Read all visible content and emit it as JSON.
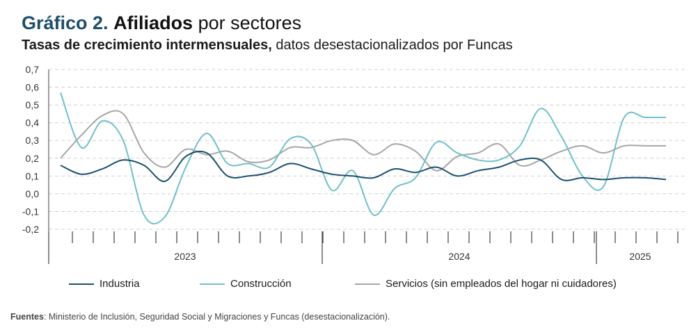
{
  "header": {
    "title_num": "Gráfico 2.",
    "title_main": "Afiliados",
    "title_rest": "por sectores",
    "subtitle_bold": "Tasas de crecimiento intermensuales,",
    "subtitle_rest": "datos desestacionalizados por Funcas"
  },
  "source": {
    "label": "Fuentes",
    "text": ": Ministerio de Inclusión, Seguridad Social y Migraciones y Funcas (desestacionalización)."
  },
  "colors": {
    "industria": "#1b4f6e",
    "construccion": "#6fc0c9",
    "servicios": "#a6a6a6",
    "grid": "#d0d0d0",
    "axis": "#404040"
  },
  "chart_data": {
    "type": "line",
    "x": [
      "2022-12",
      "2023-01",
      "2023-02",
      "2023-03",
      "2023-04",
      "2023-05",
      "2023-06",
      "2023-07",
      "2023-08",
      "2023-09",
      "2023-10",
      "2023-11",
      "2023-12",
      "2024-01",
      "2024-02",
      "2024-03",
      "2024-04",
      "2024-05",
      "2024-06",
      "2024-07",
      "2024-08",
      "2024-09",
      "2024-10",
      "2024-11",
      "2024-12",
      "2025-01",
      "2025-02",
      "2025-03",
      "2025-04",
      "2025-05"
    ],
    "x_groups": [
      {
        "label": "2023",
        "from": 0,
        "to": 12
      },
      {
        "label": "2024",
        "from": 12,
        "to": 24
      },
      {
        "label": "2025",
        "from": 24,
        "to": 29
      }
    ],
    "ylim": [
      -0.2,
      0.7
    ],
    "yticks": [
      -0.2,
      -0.1,
      0.0,
      0.1,
      0.2,
      0.3,
      0.4,
      0.5,
      0.6,
      0.7
    ],
    "ytick_labels": [
      "-0,2",
      "-0,1",
      "0,0",
      "0,1",
      "0,2",
      "0,3",
      "0,4",
      "0,5",
      "0,6",
      "0,7"
    ],
    "grid": "horizontal dashed",
    "legend_position": "bottom",
    "series": [
      {
        "name": "Industria",
        "key": "industria",
        "values": [
          0.16,
          0.11,
          0.14,
          0.19,
          0.16,
          0.07,
          0.21,
          0.23,
          0.1,
          0.1,
          0.12,
          0.17,
          0.14,
          0.11,
          0.1,
          0.09,
          0.14,
          0.12,
          0.15,
          0.1,
          0.13,
          0.15,
          0.19,
          0.19,
          0.08,
          0.09,
          0.08,
          0.09,
          0.09,
          0.08
        ]
      },
      {
        "name": "Construcción",
        "key": "construccion",
        "values": [
          0.57,
          0.26,
          0.41,
          0.3,
          -0.12,
          -0.13,
          0.15,
          0.34,
          0.17,
          0.17,
          0.15,
          0.31,
          0.28,
          0.02,
          0.13,
          -0.12,
          0.03,
          0.09,
          0.29,
          0.23,
          0.19,
          0.19,
          0.27,
          0.48,
          0.32,
          0.1,
          0.04,
          0.43,
          0.43,
          0.43
        ]
      },
      {
        "name": "Servicios (sin empleados del hogar ni cuidadores)",
        "key": "servicios",
        "values": [
          0.2,
          0.33,
          0.44,
          0.45,
          0.23,
          0.15,
          0.25,
          0.22,
          0.24,
          0.18,
          0.19,
          0.26,
          0.26,
          0.3,
          0.3,
          0.22,
          0.28,
          0.24,
          0.13,
          0.21,
          0.23,
          0.28,
          0.16,
          0.19,
          0.24,
          0.27,
          0.23,
          0.27,
          0.27,
          0.27
        ]
      }
    ]
  }
}
